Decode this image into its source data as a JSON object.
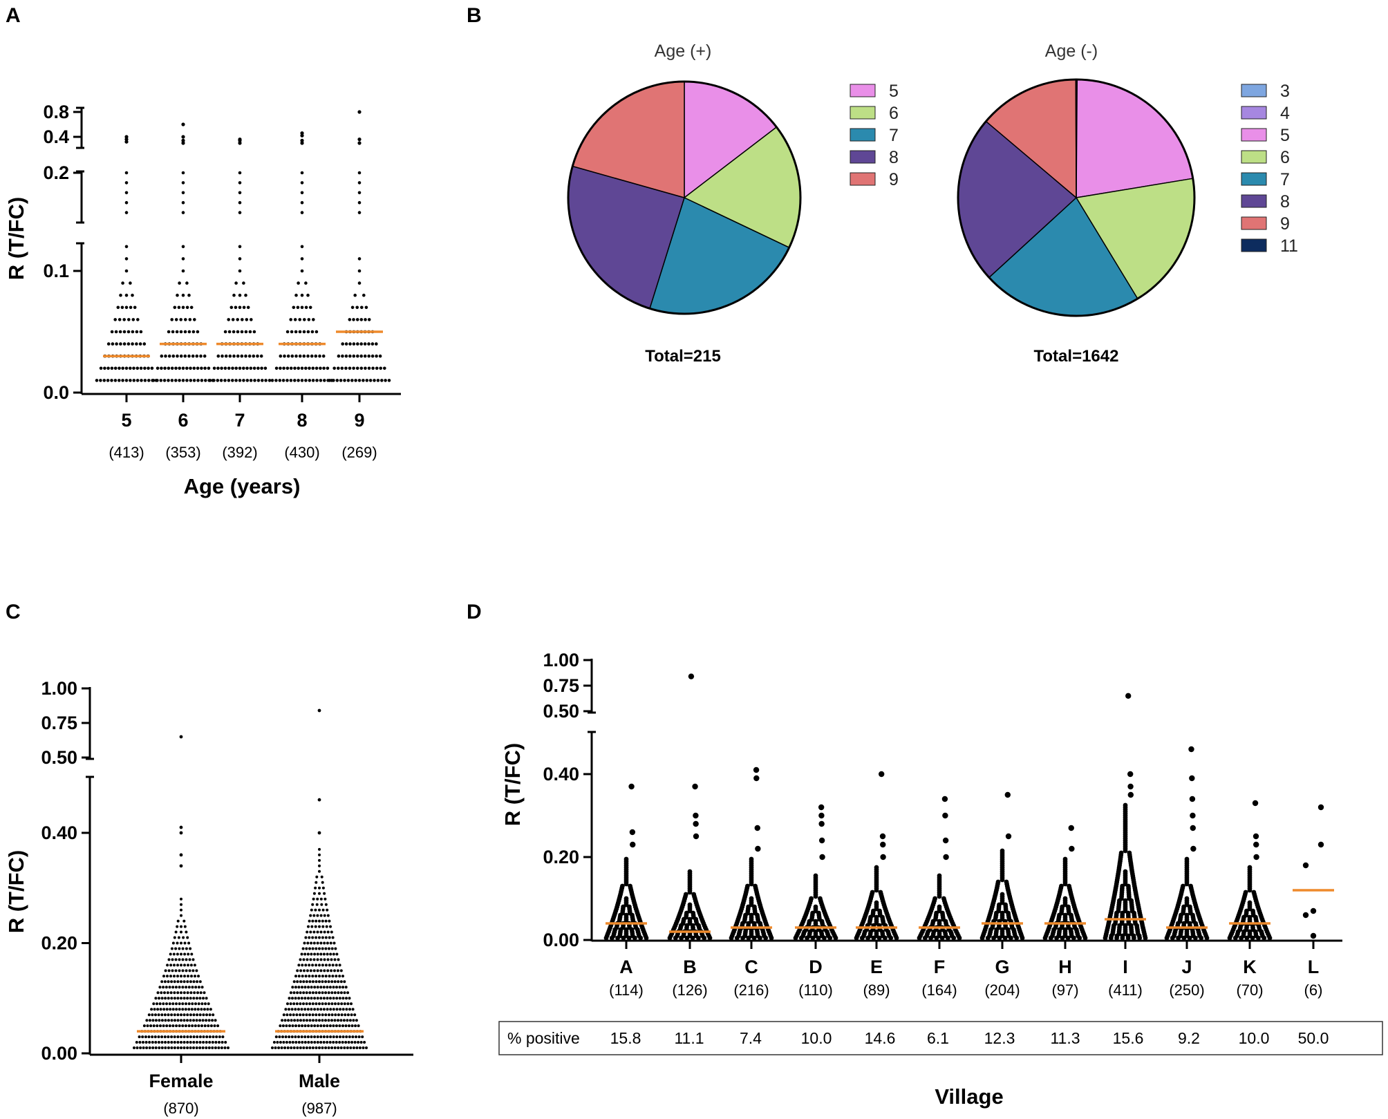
{
  "colors": {
    "median": "#ee8a2c",
    "dot": "#000000",
    "age_3": "#7ea6e0",
    "age_4": "#a687e0",
    "age_5": "#e98fe8",
    "age_6": "#bddf86",
    "age_7": "#2b8aae",
    "age_8": "#5f4795",
    "age_9": "#e07474",
    "age_11": "#0d2c5e"
  },
  "panel_labels": {
    "a": "A",
    "b": "B",
    "c": "C",
    "d": "D"
  },
  "chart_data": [
    {
      "id": "A",
      "type": "scatter",
      "subtype": "dot-strip with median",
      "ylabel": "R (T/FC)",
      "xlabel": "Age (years)",
      "y_segments": [
        {
          "range": [
            0.0,
            0.12
          ],
          "ticks": [
            "0.0",
            "0.1"
          ],
          "tick_values": [
            0.0,
            0.1
          ]
        },
        {
          "range": [
            0.15,
            0.21
          ],
          "ticks": [
            "0.2"
          ],
          "tick_values": [
            0.2
          ]
        },
        {
          "range": [
            0.3,
            0.85
          ],
          "ticks": [
            "0.4",
            "0.8"
          ],
          "tick_values": [
            0.4,
            0.8
          ]
        }
      ],
      "categories": [
        "5",
        "6",
        "7",
        "8",
        "9"
      ],
      "counts": [
        "(413)",
        "(353)",
        "(392)",
        "(430)",
        "(269)"
      ],
      "medians": [
        0.03,
        0.04,
        0.04,
        0.04,
        0.05
      ],
      "max_low": [
        0.12,
        0.12,
        0.12,
        0.12,
        0.11
      ],
      "mid_max": [
        0.2,
        0.2,
        0.2,
        0.2,
        0.2
      ],
      "outliers": [
        [
          0.32,
          0.36,
          0.4
        ],
        [
          0.3,
          0.34,
          0.4,
          0.6
        ],
        [
          0.3,
          0.34,
          0.36
        ],
        [
          0.3,
          0.34,
          0.42,
          0.46
        ],
        [
          0.3,
          0.36,
          0.8
        ]
      ]
    },
    {
      "id": "B1",
      "type": "pie",
      "title": "Age (+)",
      "labels": [
        "5",
        "6",
        "7",
        "8",
        "9"
      ],
      "values": [
        13.8,
        16.5,
        21.5,
        23.2,
        19.5
      ],
      "total_label": "Total=215"
    },
    {
      "id": "B2",
      "type": "pie",
      "title": "Age (-)",
      "labels": [
        "3",
        "4",
        "5",
        "6",
        "7",
        "8",
        "9",
        "11"
      ],
      "values": [
        0.06,
        0.06,
        22.5,
        19.1,
        22.1,
        23.2,
        13.9,
        0.06
      ],
      "total_label": "Total=1642"
    },
    {
      "id": "C",
      "type": "scatter",
      "subtype": "dot-strip with median",
      "ylabel": "R (T/FC)",
      "xlabel": "",
      "y_segments": [
        {
          "range": [
            0.0,
            0.5
          ],
          "ticks": [
            "0.00",
            "0.20",
            "0.40"
          ],
          "tick_values": [
            0.0,
            0.2,
            0.4
          ]
        },
        {
          "range": [
            0.5,
            1.0
          ],
          "ticks": [
            "0.50",
            "0.75",
            "1.00"
          ],
          "tick_values": [
            0.5,
            0.75,
            1.0
          ]
        }
      ],
      "categories": [
        "Female",
        "Male"
      ],
      "counts": [
        "(870)",
        "(987)"
      ],
      "medians": [
        0.04,
        0.04
      ],
      "max_low": [
        0.29,
        0.38
      ],
      "outliers": [
        [
          0.34,
          0.36,
          0.4,
          0.41,
          0.65
        ],
        [
          0.4,
          0.46,
          0.84
        ]
      ]
    },
    {
      "id": "D",
      "type": "scatter",
      "subtype": "dot-strip with median",
      "ylabel": "R (T/FC)",
      "xlabel": "Village",
      "y_segments": [
        {
          "range": [
            0.0,
            0.5
          ],
          "ticks": [
            "0.00",
            "0.20",
            "0.40"
          ],
          "tick_values": [
            0.0,
            0.2,
            0.4
          ]
        },
        {
          "range": [
            0.5,
            1.0
          ],
          "ticks": [
            "0.50",
            "0.75",
            "1.00"
          ],
          "tick_values": [
            0.5,
            0.75,
            1.0
          ]
        }
      ],
      "categories": [
        "A",
        "B",
        "C",
        "D",
        "E",
        "F",
        "G",
        "H",
        "I",
        "J",
        "K",
        "L"
      ],
      "counts": [
        "(114)",
        "(126)",
        "(216)",
        "(110)",
        "(89)",
        "(164)",
        "(204)",
        "(97)",
        "(411)",
        "(250)",
        "(70)",
        "(6)"
      ],
      "medians": [
        0.04,
        0.02,
        0.03,
        0.03,
        0.03,
        0.03,
        0.04,
        0.04,
        0.05,
        0.03,
        0.04,
        0.12
      ],
      "max_low": [
        0.2,
        0.17,
        0.2,
        0.16,
        0.18,
        0.16,
        0.22,
        0.2,
        0.33,
        0.2,
        0.18,
        0.0
      ],
      "outliers": [
        [
          0.23,
          0.26,
          0.37
        ],
        [
          0.25,
          0.28,
          0.3,
          0.37,
          0.84
        ],
        [
          0.22,
          0.27,
          0.39,
          0.41
        ],
        [
          0.2,
          0.24,
          0.28,
          0.3,
          0.32
        ],
        [
          0.2,
          0.23,
          0.25,
          0.4
        ],
        [
          0.2,
          0.24,
          0.3,
          0.34
        ],
        [
          0.25,
          0.35
        ],
        [
          0.22,
          0.27
        ],
        [
          0.35,
          0.37,
          0.4,
          0.65
        ],
        [
          0.22,
          0.27,
          0.3,
          0.34,
          0.39,
          0.46
        ],
        [
          0.2,
          0.23,
          0.25,
          0.33
        ],
        [
          0.01,
          0.06,
          0.07,
          0.18,
          0.23,
          0.32
        ]
      ],
      "pct_positive_label": "% positive",
      "pct_positive": [
        "15.8",
        "11.1",
        "7.4",
        "10.0",
        "14.6",
        "6.1",
        "12.3",
        "11.3",
        "15.6",
        "9.2",
        "10.0",
        "50.0"
      ]
    }
  ]
}
